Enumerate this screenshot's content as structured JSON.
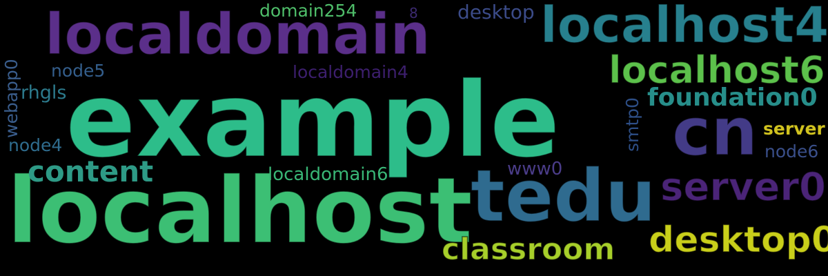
{
  "background": "#000000",
  "words": [
    {
      "text": "example",
      "color": "#2dbd8a"
    },
    {
      "text": "localhost",
      "color": "#3cbf74"
    },
    {
      "text": "localdomain",
      "color": "#5b2f8a"
    },
    {
      "text": "tedu",
      "color": "#2f6b8f"
    },
    {
      "text": "localhost4",
      "color": "#27808e"
    },
    {
      "text": "cn",
      "color": "#433b87"
    },
    {
      "text": "localhost6",
      "color": "#5cc14b"
    },
    {
      "text": "server0",
      "color": "#4b2478"
    },
    {
      "text": "desktop0",
      "color": "#c9cf1a"
    },
    {
      "text": "classroom",
      "color": "#a7cf2a"
    },
    {
      "text": "content",
      "color": "#2e9a86"
    },
    {
      "text": "foundation0",
      "color": "#278e8a"
    },
    {
      "text": "localdomain6",
      "color": "#39b676"
    },
    {
      "text": "localdomain4",
      "color": "#3d1f6e"
    },
    {
      "text": "domain254",
      "color": "#4fbe6a"
    },
    {
      "text": "desktop",
      "color": "#3b4b88"
    },
    {
      "text": "node5",
      "color": "#345e8c"
    },
    {
      "text": "rhgls",
      "color": "#2c7a8c"
    },
    {
      "text": "node4",
      "color": "#2f6c8e"
    },
    {
      "text": "node6",
      "color": "#3a4f8a"
    },
    {
      "text": "server",
      "color": "#d0c21f"
    },
    {
      "text": "www0",
      "color": "#4a3c88"
    },
    {
      "text": "smtp0",
      "color": "#2d4e86"
    },
    {
      "text": "webapp0",
      "color": "#3a5d8c"
    },
    {
      "text": "8",
      "color": "#3c2a70"
    }
  ]
}
